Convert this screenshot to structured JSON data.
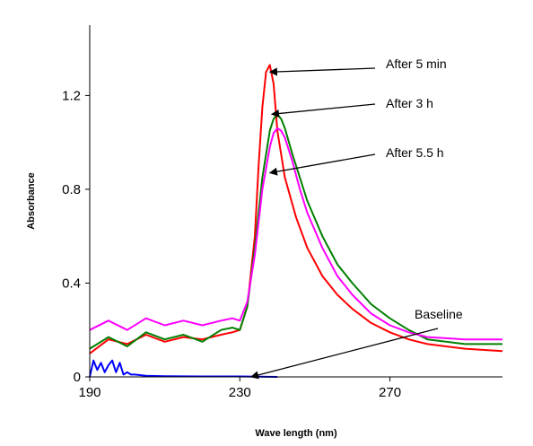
{
  "chart_data": {
    "type": "line",
    "xlabel": "Wave length (nm)",
    "ylabel": "Absorbance",
    "xlim": [
      190,
      300
    ],
    "ylim": [
      0,
      1.5
    ],
    "xticks": [
      "190",
      "230",
      "270"
    ],
    "xtick_values": [
      190,
      230,
      270
    ],
    "yticks": [
      "0",
      "0.4",
      "0.8",
      "1.2"
    ],
    "ytick_values": [
      0,
      0.4,
      0.8,
      1.2
    ],
    "grid": false,
    "series": [
      {
        "color": "#ff0000",
        "x": [
          190,
          195,
          200,
          205,
          210,
          215,
          220,
          225,
          228,
          230,
          232,
          234,
          235,
          236,
          237,
          238,
          239,
          240,
          242,
          245,
          248,
          252,
          256,
          260,
          265,
          270,
          275,
          280,
          290,
          300
        ],
        "y": [
          0.1,
          0.16,
          0.14,
          0.18,
          0.15,
          0.17,
          0.16,
          0.18,
          0.19,
          0.2,
          0.3,
          0.6,
          0.9,
          1.15,
          1.3,
          1.33,
          1.25,
          1.05,
          0.85,
          0.68,
          0.55,
          0.43,
          0.35,
          0.29,
          0.23,
          0.19,
          0.16,
          0.14,
          0.12,
          0.11
        ]
      },
      {
        "color": "#008000",
        "x": [
          190,
          195,
          200,
          205,
          210,
          215,
          220,
          225,
          228,
          230,
          232,
          234,
          236,
          238,
          239,
          240,
          241,
          242,
          244,
          246,
          248,
          252,
          256,
          260,
          265,
          270,
          275,
          280,
          290,
          300
        ],
        "y": [
          0.12,
          0.17,
          0.13,
          0.19,
          0.16,
          0.18,
          0.15,
          0.2,
          0.21,
          0.2,
          0.3,
          0.55,
          0.85,
          1.05,
          1.1,
          1.12,
          1.1,
          1.06,
          0.95,
          0.85,
          0.75,
          0.6,
          0.48,
          0.4,
          0.31,
          0.25,
          0.2,
          0.16,
          0.14,
          0.14
        ]
      },
      {
        "color": "#ff00ff",
        "x": [
          190,
          195,
          200,
          205,
          210,
          215,
          220,
          225,
          228,
          230,
          232,
          234,
          236,
          238,
          239,
          240,
          241,
          242,
          244,
          246,
          248,
          252,
          256,
          260,
          265,
          270,
          275,
          280,
          290,
          300
        ],
        "y": [
          0.2,
          0.24,
          0.2,
          0.25,
          0.22,
          0.24,
          0.22,
          0.24,
          0.25,
          0.24,
          0.32,
          0.52,
          0.8,
          0.98,
          1.04,
          1.06,
          1.05,
          1.02,
          0.92,
          0.8,
          0.7,
          0.55,
          0.43,
          0.35,
          0.27,
          0.22,
          0.19,
          0.17,
          0.16,
          0.16
        ]
      },
      {
        "color": "#0000ff",
        "x": [
          190,
          191,
          192,
          193,
          194,
          195,
          196,
          197,
          198,
          199,
          200,
          201,
          202,
          205,
          210,
          220,
          230,
          240
        ],
        "y": [
          0.0,
          0.07,
          0.03,
          0.06,
          0.02,
          0.05,
          0.07,
          0.02,
          0.06,
          0.01,
          0.02,
          0.01,
          0.01,
          0.005,
          0.003,
          0.002,
          0.002,
          0.0
        ]
      }
    ],
    "annotations": [
      {
        "text": "After 5 min",
        "point": [
          238,
          1.3
        ]
      },
      {
        "text": "After 3 h",
        "point": [
          238.5,
          1.12
        ]
      },
      {
        "text": "After 5.5 h",
        "point": [
          238,
          0.87
        ]
      },
      {
        "text": "Baseline",
        "point": [
          233,
          0.0
        ]
      }
    ]
  }
}
